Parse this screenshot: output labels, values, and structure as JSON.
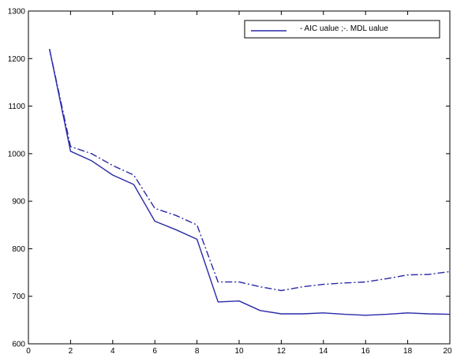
{
  "chart_data": {
    "type": "line",
    "title": "",
    "xlabel": "",
    "ylabel": "",
    "xlim": [
      0,
      20
    ],
    "ylim": [
      600,
      1300
    ],
    "x_ticks": [
      0,
      2,
      4,
      6,
      8,
      10,
      12,
      14,
      16,
      18,
      20
    ],
    "y_ticks": [
      600,
      700,
      800,
      900,
      1000,
      1100,
      1200,
      1300
    ],
    "x_tick_labels": [
      "0",
      "2",
      "4",
      "6",
      "8",
      "10",
      "12",
      "14",
      "16",
      "18",
      "20"
    ],
    "y_tick_labels": [
      "600",
      "700",
      "800",
      "900",
      "1000",
      "1100",
      "1200",
      "1300"
    ],
    "grid": false,
    "legend": {
      "placement": "top-right",
      "text": "- AIC ualue ;-. MDL ualue"
    },
    "line_color": "#2a2aa8",
    "series": [
      {
        "style": "solid",
        "x": [
          1,
          2,
          3,
          4,
          5,
          6,
          7,
          8,
          9,
          10,
          11,
          12,
          13,
          14,
          15,
          16,
          17,
          18,
          19,
          20
        ],
        "values": [
          1220,
          1005,
          985,
          955,
          935,
          858,
          840,
          820,
          688,
          690,
          670,
          663,
          663,
          665,
          662,
          660,
          662,
          665,
          663,
          662
        ]
      },
      {
        "style": "dashdot",
        "x": [
          1,
          2,
          3,
          4,
          5,
          6,
          7,
          8,
          9,
          10,
          11,
          12,
          13,
          14,
          15,
          16,
          17,
          18,
          19,
          20
        ],
        "values": [
          1220,
          1015,
          1000,
          975,
          955,
          885,
          870,
          850,
          730,
          730,
          720,
          712,
          720,
          725,
          728,
          730,
          737,
          745,
          746,
          752
        ]
      }
    ]
  }
}
